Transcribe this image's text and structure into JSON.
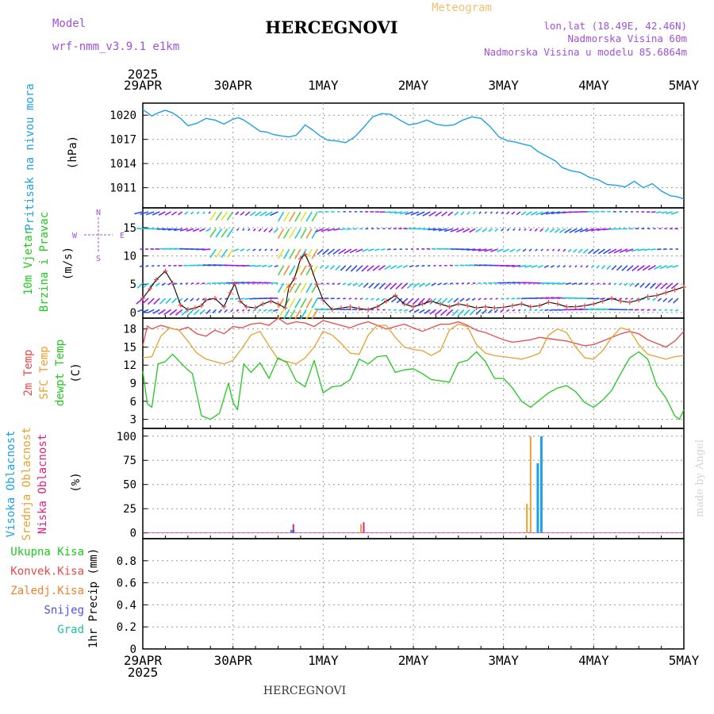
{
  "header": {
    "model_label": "Model",
    "model_name": "wrf-nmm_v3.9.1 e1km",
    "title": "HERCEGNOVI",
    "meteogram_label": "Meteogram",
    "lonlat": "lon,lat (18.49E, 42.46N)",
    "altitude": "Nadmorska Visina 60m",
    "model_altitude": "Nadmorska Visina u modelu 85.6864m",
    "footer_title": "HERCEGNOVI",
    "watermark": "made by Angel"
  },
  "colors": {
    "model": "#a050d8",
    "meteogram": "#f0c070",
    "pressure": "#1ea0e8",
    "t2m": "#e84848",
    "tsfc": "#e8a030",
    "dewpt": "#20c820",
    "wind_violet": "#9a1ee6",
    "wind_blue": "#2850f0",
    "wind_cyan": "#18c8d8",
    "wind_green": "#50d050",
    "wind_yellow": "#e8e030",
    "wind_orange": "#f09030",
    "cloud_high": "#1ea0e8",
    "cloud_mid": "#e8a030",
    "cloud_low": "#e02080",
    "precip_total": "#20c820",
    "precip_conv": "#e84848",
    "precip_strat": "#f08030",
    "precip_snow": "#5050e8",
    "precip_hail": "#20c0a0"
  },
  "chart_data": [
    {
      "type": "line",
      "panel": "pressure",
      "ylabel": "Pritisak na nivou mora",
      "unit": "(hPa)",
      "x_axis": {
        "start_year": "2025",
        "ticks": [
          "29APR",
          "30APR",
          "1MAY",
          "2MAY",
          "3MAY",
          "4MAY",
          "5MAY"
        ],
        "range_days": [
          0,
          6
        ]
      },
      "ylim": [
        1008.5,
        1021.5
      ],
      "yticks": [
        1011,
        1014,
        1017,
        1020
      ],
      "series": [
        {
          "x": [
            0,
            0.04,
            0.1,
            0.17,
            0.25,
            0.33,
            0.42,
            0.5,
            0.6,
            0.7,
            0.8,
            0.9,
            1.0,
            1.06,
            1.12,
            1.2,
            1.3,
            1.38,
            1.45,
            1.55,
            1.62,
            1.7,
            1.75,
            1.8,
            1.88,
            1.97,
            2.05,
            2.15,
            2.25,
            2.35,
            2.45,
            2.55,
            2.65,
            2.75,
            2.85,
            2.95,
            3.05,
            3.15,
            3.25,
            3.35,
            3.45,
            3.55,
            3.65,
            3.75,
            3.85,
            3.95,
            4.05,
            4.12,
            4.22,
            4.3,
            4.38,
            4.48,
            4.58,
            4.65,
            4.75,
            4.85,
            4.95,
            5.05,
            5.15,
            5.25,
            5.35,
            5.45,
            5.55,
            5.65,
            5.75,
            5.85,
            5.92,
            6.0
          ],
          "values": [
            1020.7,
            1020.4,
            1019.9,
            1020.3,
            1020.6,
            1020.3,
            1019.6,
            1018.7,
            1019.0,
            1019.6,
            1019.4,
            1018.9,
            1019.5,
            1019.7,
            1019.4,
            1018.8,
            1018.0,
            1017.9,
            1017.6,
            1017.4,
            1017.3,
            1017.5,
            1018.1,
            1018.8,
            1018.2,
            1017.4,
            1016.9,
            1016.8,
            1016.6,
            1017.3,
            1018.5,
            1019.8,
            1020.2,
            1020.1,
            1019.4,
            1018.8,
            1019.0,
            1019.4,
            1018.9,
            1018.7,
            1018.8,
            1019.4,
            1019.8,
            1019.6,
            1018.6,
            1017.3,
            1016.8,
            1016.7,
            1016.4,
            1016.2,
            1015.5,
            1014.9,
            1014.3,
            1013.5,
            1013.1,
            1012.9,
            1012.3,
            1012.0,
            1011.4,
            1011.3,
            1011.1,
            1011.8,
            1011.0,
            1011.5,
            1010.6,
            1010.0,
            1009.9,
            1009.6
          ]
        }
      ]
    },
    {
      "type": "line",
      "panel": "wind",
      "ylabel": "10m Vjetar Brzina i Pravac",
      "unit": "(m/s)",
      "compass": {
        "n": "N",
        "w": "W",
        "e": "E",
        "s": "S"
      },
      "ylim": [
        -1,
        18.5
      ],
      "yticks": [
        0,
        5,
        10,
        15
      ],
      "series": [
        {
          "name": "speed",
          "x": [
            0,
            0.08,
            0.15,
            0.25,
            0.33,
            0.42,
            0.5,
            0.58,
            0.65,
            0.7,
            0.8,
            0.9,
            0.97,
            1.02,
            1.08,
            1.15,
            1.25,
            1.33,
            1.42,
            1.5,
            1.58,
            1.62,
            1.68,
            1.75,
            1.8,
            1.86,
            1.93,
            2.0,
            2.1,
            2.2,
            2.3,
            2.4,
            2.5,
            2.6,
            2.7,
            2.8,
            2.9,
            3.0,
            3.1,
            3.2,
            3.3,
            3.4,
            3.5,
            3.6,
            3.7,
            3.8,
            3.9,
            4.0,
            4.1,
            4.2,
            4.3,
            4.4,
            4.5,
            4.6,
            4.7,
            4.8,
            4.9,
            5.0,
            5.1,
            5.2,
            5.3,
            5.4,
            5.5,
            5.6,
            5.7,
            5.8,
            5.9,
            6.0
          ],
          "values": [
            2.5,
            4.2,
            5.8,
            7.3,
            5.2,
            1.3,
            0.5,
            0.8,
            1.2,
            2.2,
            2.5,
            1.0,
            3.5,
            5.1,
            2.0,
            1.0,
            0.8,
            1.5,
            2.0,
            1.5,
            0.8,
            4.5,
            6.0,
            9.5,
            10.3,
            8.2,
            5.0,
            2.2,
            0.5,
            0.8,
            1.0,
            0.7,
            0.5,
            1.0,
            2.0,
            3.0,
            1.5,
            1.0,
            1.5,
            2.0,
            1.5,
            1.0,
            1.5,
            1.2,
            0.8,
            1.0,
            0.8,
            0.9,
            1.2,
            1.5,
            1.0,
            1.2,
            1.8,
            1.5,
            1.0,
            1.0,
            1.2,
            1.5,
            2.0,
            2.5,
            2.0,
            1.8,
            2.2,
            2.8,
            3.0,
            3.5,
            4.0,
            4.5
          ]
        }
      ]
    },
    {
      "type": "line",
      "panel": "temperature",
      "ylabel": [
        "2m Temp",
        "SFC Temp",
        "dewpt Temp"
      ],
      "unit": "(C)",
      "ylim": [
        1.5,
        19.8
      ],
      "yticks": [
        3,
        6,
        9,
        12,
        15,
        18
      ],
      "series": [
        {
          "name": "2m Temp",
          "x": [
            0,
            0.05,
            0.1,
            0.2,
            0.3,
            0.4,
            0.5,
            0.6,
            0.7,
            0.8,
            0.9,
            1.0,
            1.1,
            1.2,
            1.3,
            1.4,
            1.5,
            1.6,
            1.7,
            1.8,
            1.9,
            2.0,
            2.1,
            2.2,
            2.3,
            2.4,
            2.5,
            2.6,
            2.7,
            2.8,
            2.9,
            3.0,
            3.1,
            3.2,
            3.3,
            3.4,
            3.5,
            3.6,
            3.7,
            3.8,
            3.9,
            4.0,
            4.1,
            4.2,
            4.3,
            4.4,
            4.5,
            4.6,
            4.7,
            4.8,
            4.9,
            5.0,
            5.1,
            5.2,
            5.3,
            5.4,
            5.5,
            5.6,
            5.7,
            5.8,
            5.9,
            6.0
          ],
          "values": [
            15.2,
            18.5,
            18.0,
            18.6,
            18.2,
            17.8,
            18.3,
            17.2,
            16.8,
            17.8,
            17.2,
            18.4,
            18.2,
            18.8,
            19.0,
            18.6,
            19.8,
            18.8,
            19.2,
            19.0,
            18.4,
            19.4,
            19.0,
            18.6,
            18.2,
            18.8,
            19.2,
            18.6,
            18.0,
            18.4,
            18.8,
            18.2,
            17.6,
            18.2,
            18.8,
            18.8,
            19.2,
            18.6,
            17.8,
            17.4,
            16.8,
            16.2,
            15.8,
            16.0,
            16.2,
            16.6,
            16.4,
            16.2,
            16.0,
            15.6,
            15.2,
            15.4,
            16.0,
            16.6,
            17.2,
            17.6,
            17.2,
            16.2,
            15.6,
            15.0,
            16.0,
            17.6
          ]
        },
        {
          "name": "SFC Temp",
          "x": [
            0,
            0.1,
            0.2,
            0.3,
            0.4,
            0.5,
            0.6,
            0.7,
            0.8,
            0.9,
            1.0,
            1.1,
            1.2,
            1.3,
            1.4,
            1.5,
            1.6,
            1.7,
            1.8,
            1.9,
            2.0,
            2.1,
            2.2,
            2.3,
            2.4,
            2.5,
            2.6,
            2.7,
            2.8,
            2.9,
            3.0,
            3.1,
            3.2,
            3.3,
            3.4,
            3.5,
            3.6,
            3.7,
            3.8,
            3.9,
            4.0,
            4.1,
            4.2,
            4.3,
            4.4,
            4.5,
            4.6,
            4.7,
            4.8,
            4.9,
            5.0,
            5.1,
            5.2,
            5.3,
            5.4,
            5.5,
            5.6,
            5.7,
            5.8,
            5.9,
            6.0
          ],
          "values": [
            13.2,
            13.4,
            16.8,
            18.2,
            17.8,
            16.0,
            14.0,
            13.0,
            12.6,
            12.2,
            12.8,
            14.8,
            17.0,
            17.6,
            15.2,
            13.0,
            12.6,
            12.2,
            13.2,
            15.0,
            17.6,
            17.0,
            15.6,
            14.0,
            13.8,
            17.0,
            18.6,
            18.6,
            16.6,
            15.0,
            14.6,
            14.4,
            13.6,
            14.4,
            17.8,
            18.8,
            18.4,
            15.4,
            14.0,
            13.6,
            13.4,
            13.2,
            13.0,
            13.4,
            14.0,
            17.0,
            18.0,
            17.4,
            15.0,
            13.2,
            13.0,
            14.4,
            16.6,
            18.2,
            17.8,
            15.4,
            13.8,
            13.4,
            13.0,
            13.4,
            13.6
          ]
        },
        {
          "name": "dewpt Temp",
          "x": [
            0,
            0.05,
            0.1,
            0.17,
            0.25,
            0.33,
            0.42,
            0.5,
            0.55,
            0.65,
            0.75,
            0.85,
            0.95,
            1.0,
            1.05,
            1.12,
            1.2,
            1.3,
            1.4,
            1.5,
            1.6,
            1.7,
            1.8,
            1.9,
            2.0,
            2.1,
            2.2,
            2.3,
            2.4,
            2.5,
            2.6,
            2.7,
            2.8,
            2.9,
            3.0,
            3.1,
            3.2,
            3.3,
            3.4,
            3.5,
            3.6,
            3.7,
            3.8,
            3.9,
            4.0,
            4.1,
            4.2,
            4.3,
            4.4,
            4.5,
            4.6,
            4.7,
            4.8,
            4.9,
            5.0,
            5.1,
            5.2,
            5.3,
            5.4,
            5.5,
            5.6,
            5.7,
            5.8,
            5.9,
            5.95,
            6.0
          ],
          "values": [
            11.0,
            5.6,
            5.0,
            12.2,
            12.6,
            13.8,
            12.4,
            11.2,
            10.6,
            3.6,
            3.0,
            4.0,
            9.0,
            5.8,
            4.6,
            12.2,
            10.8,
            12.4,
            9.8,
            13.2,
            12.4,
            9.4,
            8.4,
            12.8,
            7.4,
            8.4,
            8.6,
            9.6,
            13.0,
            12.2,
            13.4,
            13.6,
            10.8,
            11.2,
            11.4,
            10.6,
            9.6,
            9.4,
            9.2,
            12.4,
            12.8,
            14.2,
            12.6,
            9.8,
            9.8,
            8.2,
            6.0,
            5.0,
            6.2,
            7.4,
            8.2,
            8.6,
            7.6,
            5.8,
            5.0,
            6.2,
            7.8,
            10.6,
            13.2,
            14.2,
            13.0,
            8.6,
            6.6,
            3.6,
            3.0,
            4.6
          ]
        }
      ]
    },
    {
      "type": "bar",
      "panel": "cloud",
      "ylabel": [
        "Visoka Oblacnost",
        "Srednja Oblacnost",
        "Niska Oblacnost"
      ],
      "unit": "(%)",
      "ylim": [
        -6,
        108
      ],
      "yticks": [
        0,
        25,
        50,
        75,
        100
      ],
      "series": [
        {
          "name": "Visoka Oblacnost",
          "x": [
            1.65,
            1.67,
            4.38,
            4.42
          ],
          "values": [
            3,
            3,
            72,
            100
          ]
        },
        {
          "name": "Srednja Oblacnost",
          "x": [
            2.42,
            4.26,
            4.3
          ],
          "values": [
            9,
            30,
            100
          ]
        },
        {
          "name": "Niska Oblacnost",
          "x": [
            1.67,
            2.45
          ],
          "values": [
            9,
            11
          ]
        }
      ]
    },
    {
      "type": "line",
      "panel": "precip",
      "ylabel": "1hr Precip (mm)",
      "legend": [
        "Ukupna Kisa",
        "Konvek.Kisa",
        "Zaledj.Kisa",
        "Snijeg",
        "Grad"
      ],
      "ylim": [
        0,
        1.0
      ],
      "yticks": [
        0,
        0.2,
        0.4,
        0.6,
        0.8
      ],
      "series": []
    }
  ]
}
